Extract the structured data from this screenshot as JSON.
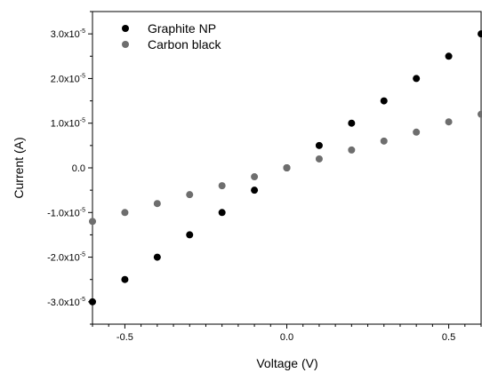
{
  "chart_data": {
    "type": "scatter",
    "title": "",
    "xlabel": "Voltage (V)",
    "ylabel": "Current (A)",
    "xlim": [
      -0.6,
      0.6
    ],
    "ylim": [
      -3.5e-05,
      3.5e-05
    ],
    "x_ticks": [
      {
        "value": -0.5,
        "label": "-0.5"
      },
      {
        "value": 0.0,
        "label": "0.0"
      },
      {
        "value": 0.5,
        "label": "0.5"
      }
    ],
    "y_ticks": [
      {
        "value": 3e-05,
        "mantissa": "3.0x10",
        "exponent": "-5"
      },
      {
        "value": 2e-05,
        "mantissa": "2.0x10",
        "exponent": "-5"
      },
      {
        "value": 1e-05,
        "mantissa": "1.0x10",
        "exponent": "-5"
      },
      {
        "value": 0.0,
        "mantissa": "0.0",
        "exponent": ""
      },
      {
        "value": -1e-05,
        "mantissa": "-1.0x10",
        "exponent": "-5"
      },
      {
        "value": -2e-05,
        "mantissa": "-2.0x10",
        "exponent": "-5"
      },
      {
        "value": -3e-05,
        "mantissa": "-3.0x10",
        "exponent": "-5"
      }
    ],
    "grid": false,
    "legend_position": "top-left",
    "series": [
      {
        "name": "Graphite NP",
        "color": "#000000",
        "x": [
          -0.6,
          -0.5,
          -0.4,
          -0.3,
          -0.2,
          -0.1,
          0.0,
          0.1,
          0.2,
          0.3,
          0.4,
          0.5,
          0.6
        ],
        "y": [
          -3e-05,
          -2.5e-05,
          -2e-05,
          -1.5e-05,
          -1e-05,
          -5e-06,
          0.0,
          5e-06,
          1e-05,
          1.5e-05,
          2e-05,
          2.5e-05,
          3e-05
        ]
      },
      {
        "name": "Carbon black",
        "color": "#6e6e6e",
        "x": [
          -0.6,
          -0.5,
          -0.4,
          -0.3,
          -0.2,
          -0.1,
          0.0,
          0.1,
          0.2,
          0.3,
          0.4,
          0.5,
          0.6
        ],
        "y": [
          -1.2e-05,
          -1e-05,
          -8e-06,
          -6e-06,
          -4e-06,
          -2e-06,
          0.0,
          2e-06,
          4e-06,
          6e-06,
          8e-06,
          1.03e-05,
          1.2e-05
        ]
      }
    ]
  }
}
